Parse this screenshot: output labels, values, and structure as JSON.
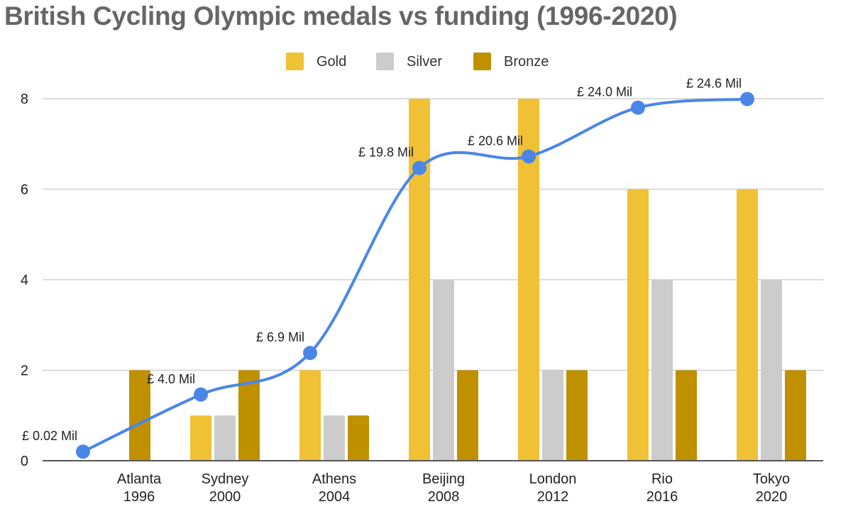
{
  "chart_data": {
    "type": "bar",
    "title": "British Cycling Olympic medals vs funding (1996-2020)",
    "categories": [
      [
        "Atlanta",
        "1996"
      ],
      [
        "Sydney",
        "2000"
      ],
      [
        "Athens",
        "2004"
      ],
      [
        "Beijing",
        "2008"
      ],
      [
        "London",
        "2012"
      ],
      [
        "Rio",
        "2016"
      ],
      [
        "Tokyo",
        "2020"
      ]
    ],
    "series": [
      {
        "name": "Gold",
        "color": "#f0c135",
        "values": [
          0,
          1,
          2,
          8,
          8,
          6,
          6
        ]
      },
      {
        "name": "Silver",
        "color": "#cccccc",
        "values": [
          0,
          1,
          1,
          4,
          2,
          4,
          4
        ]
      },
      {
        "name": "Bronze",
        "color": "#bf9000",
        "values": [
          2,
          2,
          1,
          2,
          2,
          2,
          2
        ]
      }
    ],
    "line_series": {
      "name": "Funding",
      "color": "#4a86e8",
      "values": [
        0.02,
        4.0,
        6.9,
        19.8,
        20.6,
        24.0,
        24.6
      ],
      "labels": [
        "£ 0.02 Mil",
        "£ 4.0 Mil",
        "£ 6.9 Mil",
        "£ 19.8 Mil",
        "£ 20.6 Mil",
        "£ 24.0 Mil",
        "£ 24.6 Mil"
      ]
    },
    "ylim": [
      0,
      8
    ],
    "yticks": [
      "0",
      "2",
      "4",
      "6",
      "8"
    ],
    "legend": "top",
    "grid": true,
    "xlabel": "",
    "ylabel": ""
  }
}
